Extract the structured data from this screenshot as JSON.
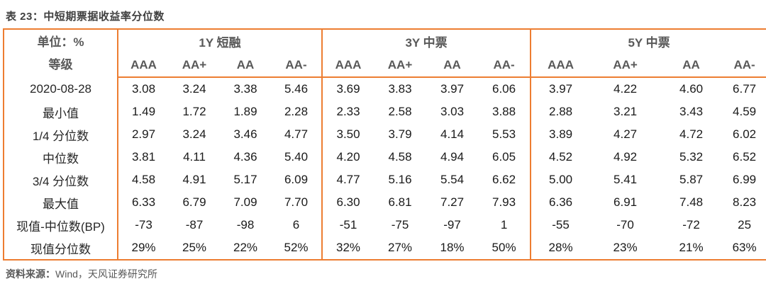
{
  "title": "表 23：中短期票据收益率分位数",
  "colors": {
    "accent": "#ED7D31",
    "negative": "#FF0000"
  },
  "table": {
    "unit_label": "单位：%",
    "grade_label": "等级",
    "groups": [
      {
        "label": "1Y 短融"
      },
      {
        "label": "3Y 中票"
      },
      {
        "label": "5Y 中票"
      }
    ],
    "sub_headers": [
      "AAA",
      "AA+",
      "AA",
      "AA-"
    ],
    "rows": [
      {
        "label": "2020-08-28",
        "values": [
          "3.08",
          "3.24",
          "3.38",
          "5.46",
          "3.69",
          "3.83",
          "3.97",
          "6.06",
          "3.97",
          "4.22",
          "4.60",
          "6.77"
        ]
      },
      {
        "label": "最小值",
        "values": [
          "1.49",
          "1.72",
          "1.89",
          "2.28",
          "2.33",
          "2.58",
          "3.03",
          "3.88",
          "2.88",
          "3.21",
          "3.43",
          "4.59"
        ]
      },
      {
        "label": "1/4 分位数",
        "values": [
          "2.97",
          "3.24",
          "3.46",
          "4.77",
          "3.50",
          "3.79",
          "4.14",
          "5.53",
          "3.89",
          "4.27",
          "4.72",
          "6.02"
        ]
      },
      {
        "label": "中位数",
        "values": [
          "3.81",
          "4.11",
          "4.36",
          "5.40",
          "4.20",
          "4.58",
          "4.94",
          "6.05",
          "4.52",
          "4.92",
          "5.32",
          "6.52"
        ]
      },
      {
        "label": "3/4 分位数",
        "values": [
          "4.58",
          "4.91",
          "5.17",
          "6.09",
          "4.77",
          "5.16",
          "5.54",
          "6.62",
          "5.00",
          "5.41",
          "5.87",
          "6.99"
        ]
      },
      {
        "label": "最大值",
        "values": [
          "6.33",
          "6.79",
          "7.09",
          "7.70",
          "6.30",
          "6.81",
          "7.27",
          "7.93",
          "6.36",
          "6.91",
          "7.48",
          "8.23"
        ]
      },
      {
        "label": "现值-中位数(BP)",
        "values": [
          "-73",
          "-87",
          "-98",
          "6",
          "-51",
          "-75",
          "-97",
          "1",
          "-55",
          "-70",
          "-72",
          "25"
        ]
      },
      {
        "label": "现值分位数",
        "values": [
          "29%",
          "25%",
          "22%",
          "52%",
          "32%",
          "27%",
          "18%",
          "50%",
          "28%",
          "23%",
          "21%",
          "63%"
        ]
      }
    ]
  },
  "source": {
    "label": "资料来源：",
    "text": "Wind，天风证券研究所"
  }
}
